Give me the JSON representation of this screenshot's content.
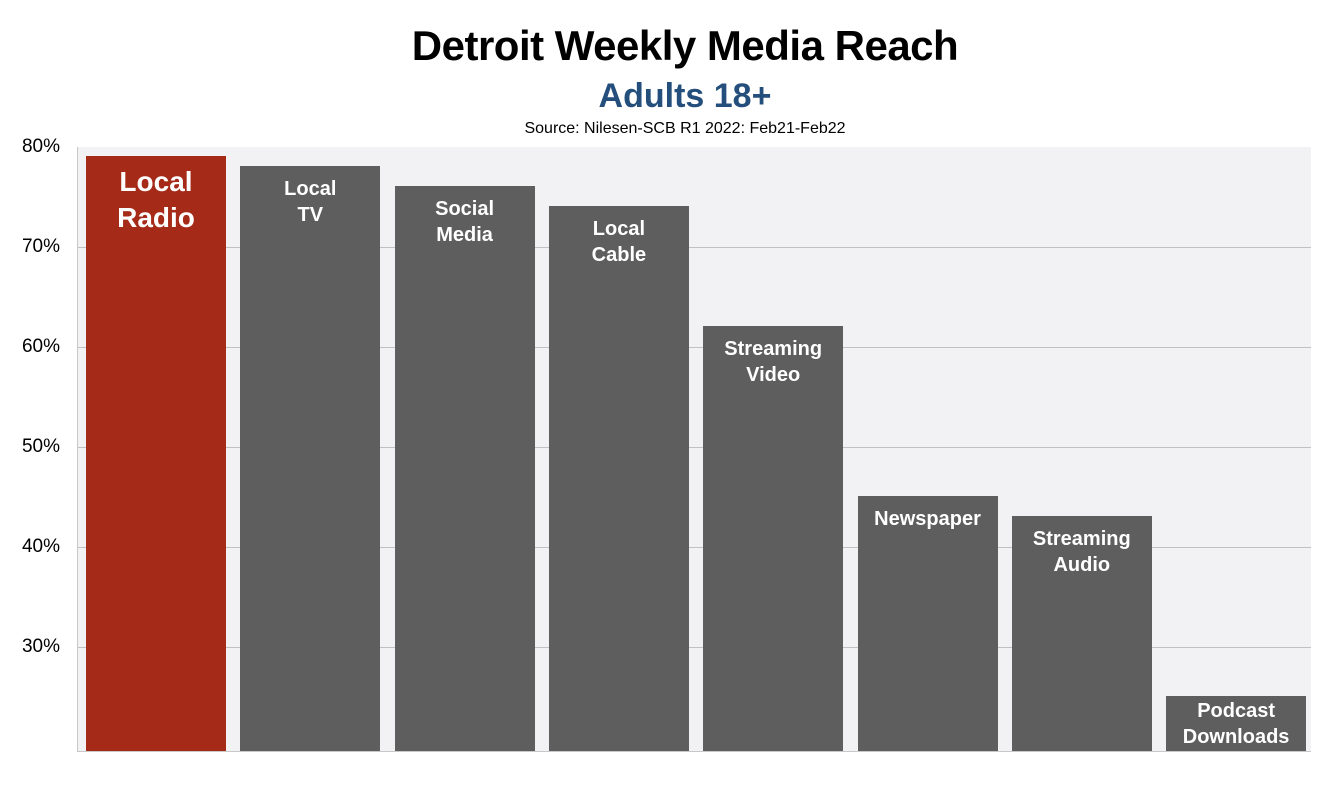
{
  "chart_data": {
    "type": "bar",
    "title": "Detroit Weekly Media Reach",
    "subtitle": "Adults 18+",
    "source": "Source: Nilesen-SCB R1 2022: Feb21-Feb22",
    "xlabel": "",
    "ylabel": "",
    "ylim": [
      20,
      80
    ],
    "yticks": [
      "30%",
      "40%",
      "50%",
      "60%",
      "70%",
      "80%"
    ],
    "grid": true,
    "legend": "none",
    "categories": [
      "Local Radio",
      "Local TV",
      "Social Media",
      "Local Cable",
      "Streaming Video",
      "Newspaper",
      "Streaming Audio",
      "Podcast Downloads"
    ],
    "values": [
      79,
      78,
      76,
      74,
      62,
      45,
      43,
      25
    ],
    "bar_labels": [
      "Local\nRadio",
      "Local\nTV",
      "Social\nMedia",
      "Local\nCable",
      "Streaming\nVideo",
      "Newspaper",
      "Streaming\nAudio",
      "Podcast\nDownloads"
    ],
    "colors": {
      "highlight": "#a52a17",
      "default": "#5e5e5e",
      "subtitle": "#244f7c",
      "plot_background": "#f2f1f4"
    },
    "highlight_index": 0
  }
}
